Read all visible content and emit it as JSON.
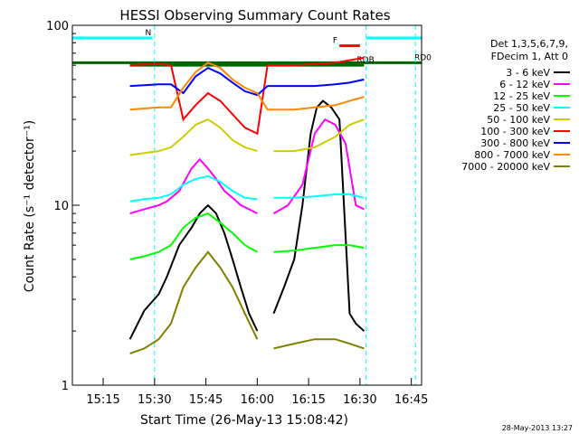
{
  "chart_data": {
    "type": "line",
    "title": "HESSI Observing Summary Count Rates",
    "ylabel": "Count Rate (s⁻¹ detector⁻¹)",
    "xlabel": "Start Time (26-May-13 15:08:42)",
    "y_scale": "log",
    "ylim": [
      1,
      100
    ],
    "y_ticks": [
      {
        "value": 1,
        "label": "1"
      },
      {
        "value": 10,
        "label": "10"
      },
      {
        "value": 100,
        "label": "100"
      }
    ],
    "xlim_minutes": [
      15.1,
      16.8
    ],
    "x_ticks": [
      "15:15",
      "15:30",
      "15:45",
      "16:00",
      "16:15",
      "16:30",
      "16:45"
    ],
    "x_tick_hours": [
      15.25,
      15.5,
      15.75,
      16.0,
      16.25,
      16.5,
      16.75
    ],
    "grid": false,
    "legend_placement": "right",
    "legend_header": [
      "Det 1,3,5,6,7,9,",
      "FDecim 1, Att 0"
    ],
    "series": [
      {
        "name": "3 - 6 keV",
        "color": "#000000",
        "segments": [
          {
            "t": [
              15.38,
              15.45,
              15.52,
              15.56,
              15.62,
              15.68,
              15.72,
              15.76,
              15.8,
              15.84,
              15.88,
              15.92,
              15.96,
              16.0
            ],
            "y": [
              1.8,
              2.6,
              3.2,
              4.0,
              6.0,
              7.5,
              9.0,
              10.0,
              9.0,
              7.0,
              5.0,
              3.5,
              2.5,
              2.0
            ]
          },
          {
            "t": [
              16.08,
              16.13,
              16.18,
              16.22,
              16.26,
              16.29,
              16.32,
              16.36,
              16.4,
              16.45,
              16.48,
              16.52
            ],
            "y": [
              2.5,
              3.5,
              5.0,
              10.0,
              25.0,
              35.0,
              38.0,
              35.0,
              30.0,
              2.5,
              2.2,
              2.0
            ]
          }
        ]
      },
      {
        "name": "6 - 12 keV",
        "color": "#ff00ff",
        "segments": [
          {
            "t": [
              15.38,
              15.45,
              15.52,
              15.56,
              15.62,
              15.68,
              15.72,
              15.76,
              15.8,
              15.84,
              15.88,
              15.92,
              15.96,
              16.0
            ],
            "y": [
              9.0,
              9.5,
              10.0,
              10.5,
              12.0,
              16.0,
              18.0,
              16.0,
              14.0,
              12.0,
              11.0,
              10.0,
              9.5,
              9.0
            ]
          },
          {
            "t": [
              16.08,
              16.15,
              16.22,
              16.28,
              16.33,
              16.38,
              16.43,
              16.48,
              16.52
            ],
            "y": [
              9.0,
              10.0,
              13.0,
              25.0,
              30.0,
              28.0,
              22.0,
              10.0,
              9.5
            ]
          }
        ]
      },
      {
        "name": "12 - 25 keV",
        "color": "#00ff00",
        "segments": [
          {
            "t": [
              15.38,
              15.45,
              15.52,
              15.58,
              15.64,
              15.7,
              15.76,
              15.82,
              15.88,
              15.94,
              16.0
            ],
            "y": [
              5.0,
              5.2,
              5.5,
              6.0,
              7.5,
              8.5,
              9.0,
              8.0,
              7.0,
              6.0,
              5.5
            ]
          },
          {
            "t": [
              16.08,
              16.18,
              16.28,
              16.38,
              16.45,
              16.52
            ],
            "y": [
              5.5,
              5.6,
              5.8,
              6.0,
              6.0,
              5.8
            ]
          }
        ]
      },
      {
        "name": "25 - 50 keV",
        "color": "#00ffff",
        "segments": [
          {
            "t": [
              15.38,
              15.45,
              15.52,
              15.58,
              15.64,
              15.7,
              15.76,
              15.82,
              15.88,
              15.94,
              16.0
            ],
            "y": [
              10.5,
              10.8,
              11.0,
              11.5,
              13.0,
              14.0,
              14.5,
              13.5,
              12.0,
              11.0,
              10.8
            ]
          },
          {
            "t": [
              16.08,
              16.18,
              16.28,
              16.38,
              16.45,
              16.52
            ],
            "y": [
              11.0,
              11.0,
              11.2,
              11.5,
              11.5,
              11.0
            ]
          }
        ]
      },
      {
        "name": "50 - 100 keV",
        "color": "#cccc00",
        "segments": [
          {
            "t": [
              15.38,
              15.45,
              15.52,
              15.58,
              15.64,
              15.7,
              15.76,
              15.82,
              15.88,
              15.94,
              16.0
            ],
            "y": [
              19.0,
              19.5,
              20.0,
              21.0,
              24.0,
              28.0,
              30.0,
              27.0,
              23.0,
              21.0,
              20.0
            ]
          },
          {
            "t": [
              16.08,
              16.18,
              16.28,
              16.38,
              16.45,
              16.52
            ],
            "y": [
              20.0,
              20.0,
              21.0,
              24.0,
              28.0,
              30.0
            ]
          }
        ]
      },
      {
        "name": "100 - 300 keV",
        "color": "#ff0000",
        "segments": [
          {
            "t": [
              15.38,
              15.45,
              15.52,
              15.58,
              15.64,
              15.7,
              15.76,
              15.82,
              15.88,
              15.94,
              16.0,
              16.05,
              16.08,
              16.18,
              16.28,
              16.38,
              16.45,
              16.52
            ],
            "y": [
              60.0,
              60.5,
              61.0,
              60.0,
              30.0,
              36.0,
              42.0,
              38.0,
              32.0,
              27.0,
              25.0,
              60.0,
              60.0,
              60.0,
              61.0,
              62.0,
              64.0,
              66.0
            ]
          }
        ]
      },
      {
        "name": "300 - 800 keV",
        "color": "#0000ff",
        "segments": [
          {
            "t": [
              15.38,
              15.45,
              15.52,
              15.58,
              15.64,
              15.7,
              15.76,
              15.82,
              15.88,
              15.94,
              16.0,
              16.05,
              16.08,
              16.18,
              16.28,
              16.38,
              16.45,
              16.52
            ],
            "y": [
              46.0,
              46.5,
              47.0,
              47.0,
              42.0,
              52.0,
              58.0,
              54.0,
              48.0,
              43.0,
              41.0,
              46.0,
              46.0,
              46.0,
              46.0,
              47.0,
              48.0,
              50.0
            ]
          }
        ]
      },
      {
        "name": "800 - 7000 keV",
        "color": "#ff8800",
        "segments": [
          {
            "t": [
              15.38,
              15.45,
              15.52,
              15.58,
              15.64,
              15.7,
              15.76,
              15.82,
              15.88,
              15.94,
              16.0,
              16.05,
              16.08,
              16.18,
              16.28,
              16.38,
              16.45,
              16.52
            ],
            "y": [
              34.0,
              34.5,
              35.0,
              35.0,
              45.0,
              55.0,
              62.0,
              58.0,
              50.0,
              45.0,
              42.0,
              34.0,
              34.0,
              34.0,
              35.0,
              36.0,
              38.0,
              40.0
            ]
          }
        ]
      },
      {
        "name": "7000 - 20000 keV",
        "color": "#808000",
        "segments": [
          {
            "t": [
              15.38,
              15.45,
              15.52,
              15.58,
              15.64,
              15.7,
              15.76,
              15.82,
              15.88,
              15.94,
              16.0
            ],
            "y": [
              1.5,
              1.6,
              1.8,
              2.2,
              3.5,
              4.5,
              5.5,
              4.5,
              3.5,
              2.5,
              1.8
            ]
          },
          {
            "t": [
              16.08,
              16.18,
              16.28,
              16.38,
              16.45,
              16.52
            ],
            "y": [
              1.6,
              1.7,
              1.8,
              1.8,
              1.7,
              1.6
            ]
          }
        ]
      }
    ],
    "flag_lines": [
      {
        "label": "N",
        "color": "#00ffff",
        "t_start": 15.1,
        "t_end": 15.49,
        "y": 85
      },
      {
        "label": "",
        "color": "#00ffff",
        "t_start": 16.53,
        "t_end": 16.8,
        "y": 85
      },
      {
        "label": "F",
        "color": "#ff0000",
        "t_start": 16.4,
        "t_end": 16.5,
        "y": 77
      },
      {
        "label": "RD0",
        "color": "#006400",
        "t_start": 15.1,
        "t_end": 16.8,
        "y": 62
      },
      {
        "label": "RDB",
        "color": "#006400",
        "t_start": 15.38,
        "t_end": 16.52,
        "y": 60
      }
    ],
    "dashed_markers": [
      {
        "color": "#00ffff",
        "t": 15.5
      },
      {
        "color": "#00ffff",
        "t": 16.53
      },
      {
        "color": "#00ffff",
        "t": 16.77
      }
    ],
    "footer_note": "28-May-2013 13:27"
  }
}
